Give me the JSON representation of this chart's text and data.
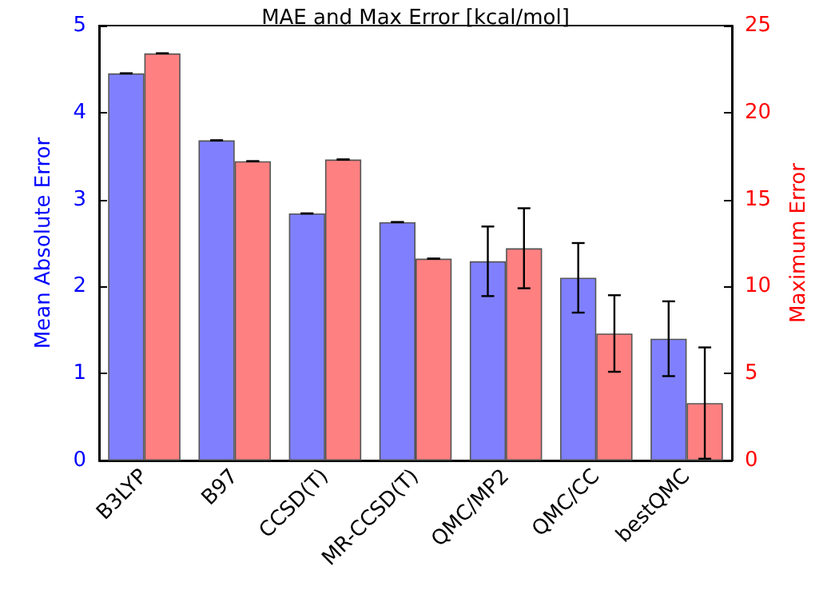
{
  "chart_data": {
    "type": "bar",
    "title": "MAE and Max Error [kcal/mol]",
    "ylabel": "Mean Absolute Error",
    "y2label": "Maximum Error",
    "categories": [
      "B3LYP",
      "B97",
      "CCSD(T)",
      "MR-CCSD(T)",
      "QMC/MP2",
      "QMC/CC",
      "bestQMC"
    ],
    "series": [
      {
        "color": "#8080ff",
        "values": [
          4.45,
          3.68,
          2.84,
          2.74,
          2.29,
          2.1,
          1.4
        ],
        "errors": [
          0,
          0,
          0,
          0,
          0.4,
          0.4,
          0.43
        ]
      },
      {
        "color": "#ff8080",
        "axis": "y2",
        "values": [
          23.4,
          17.2,
          17.3,
          11.6,
          12.2,
          7.3,
          3.3
        ],
        "errors": [
          0,
          0,
          0,
          0,
          2.3,
          2.2,
          3.2
        ]
      }
    ],
    "ylim": [
      0,
      5
    ],
    "yticks": [
      0,
      1,
      2,
      3,
      4,
      5
    ],
    "y2lim": [
      0,
      25
    ],
    "y2ticks": [
      0,
      5,
      10,
      15,
      20,
      25
    ],
    "grid": false
  }
}
